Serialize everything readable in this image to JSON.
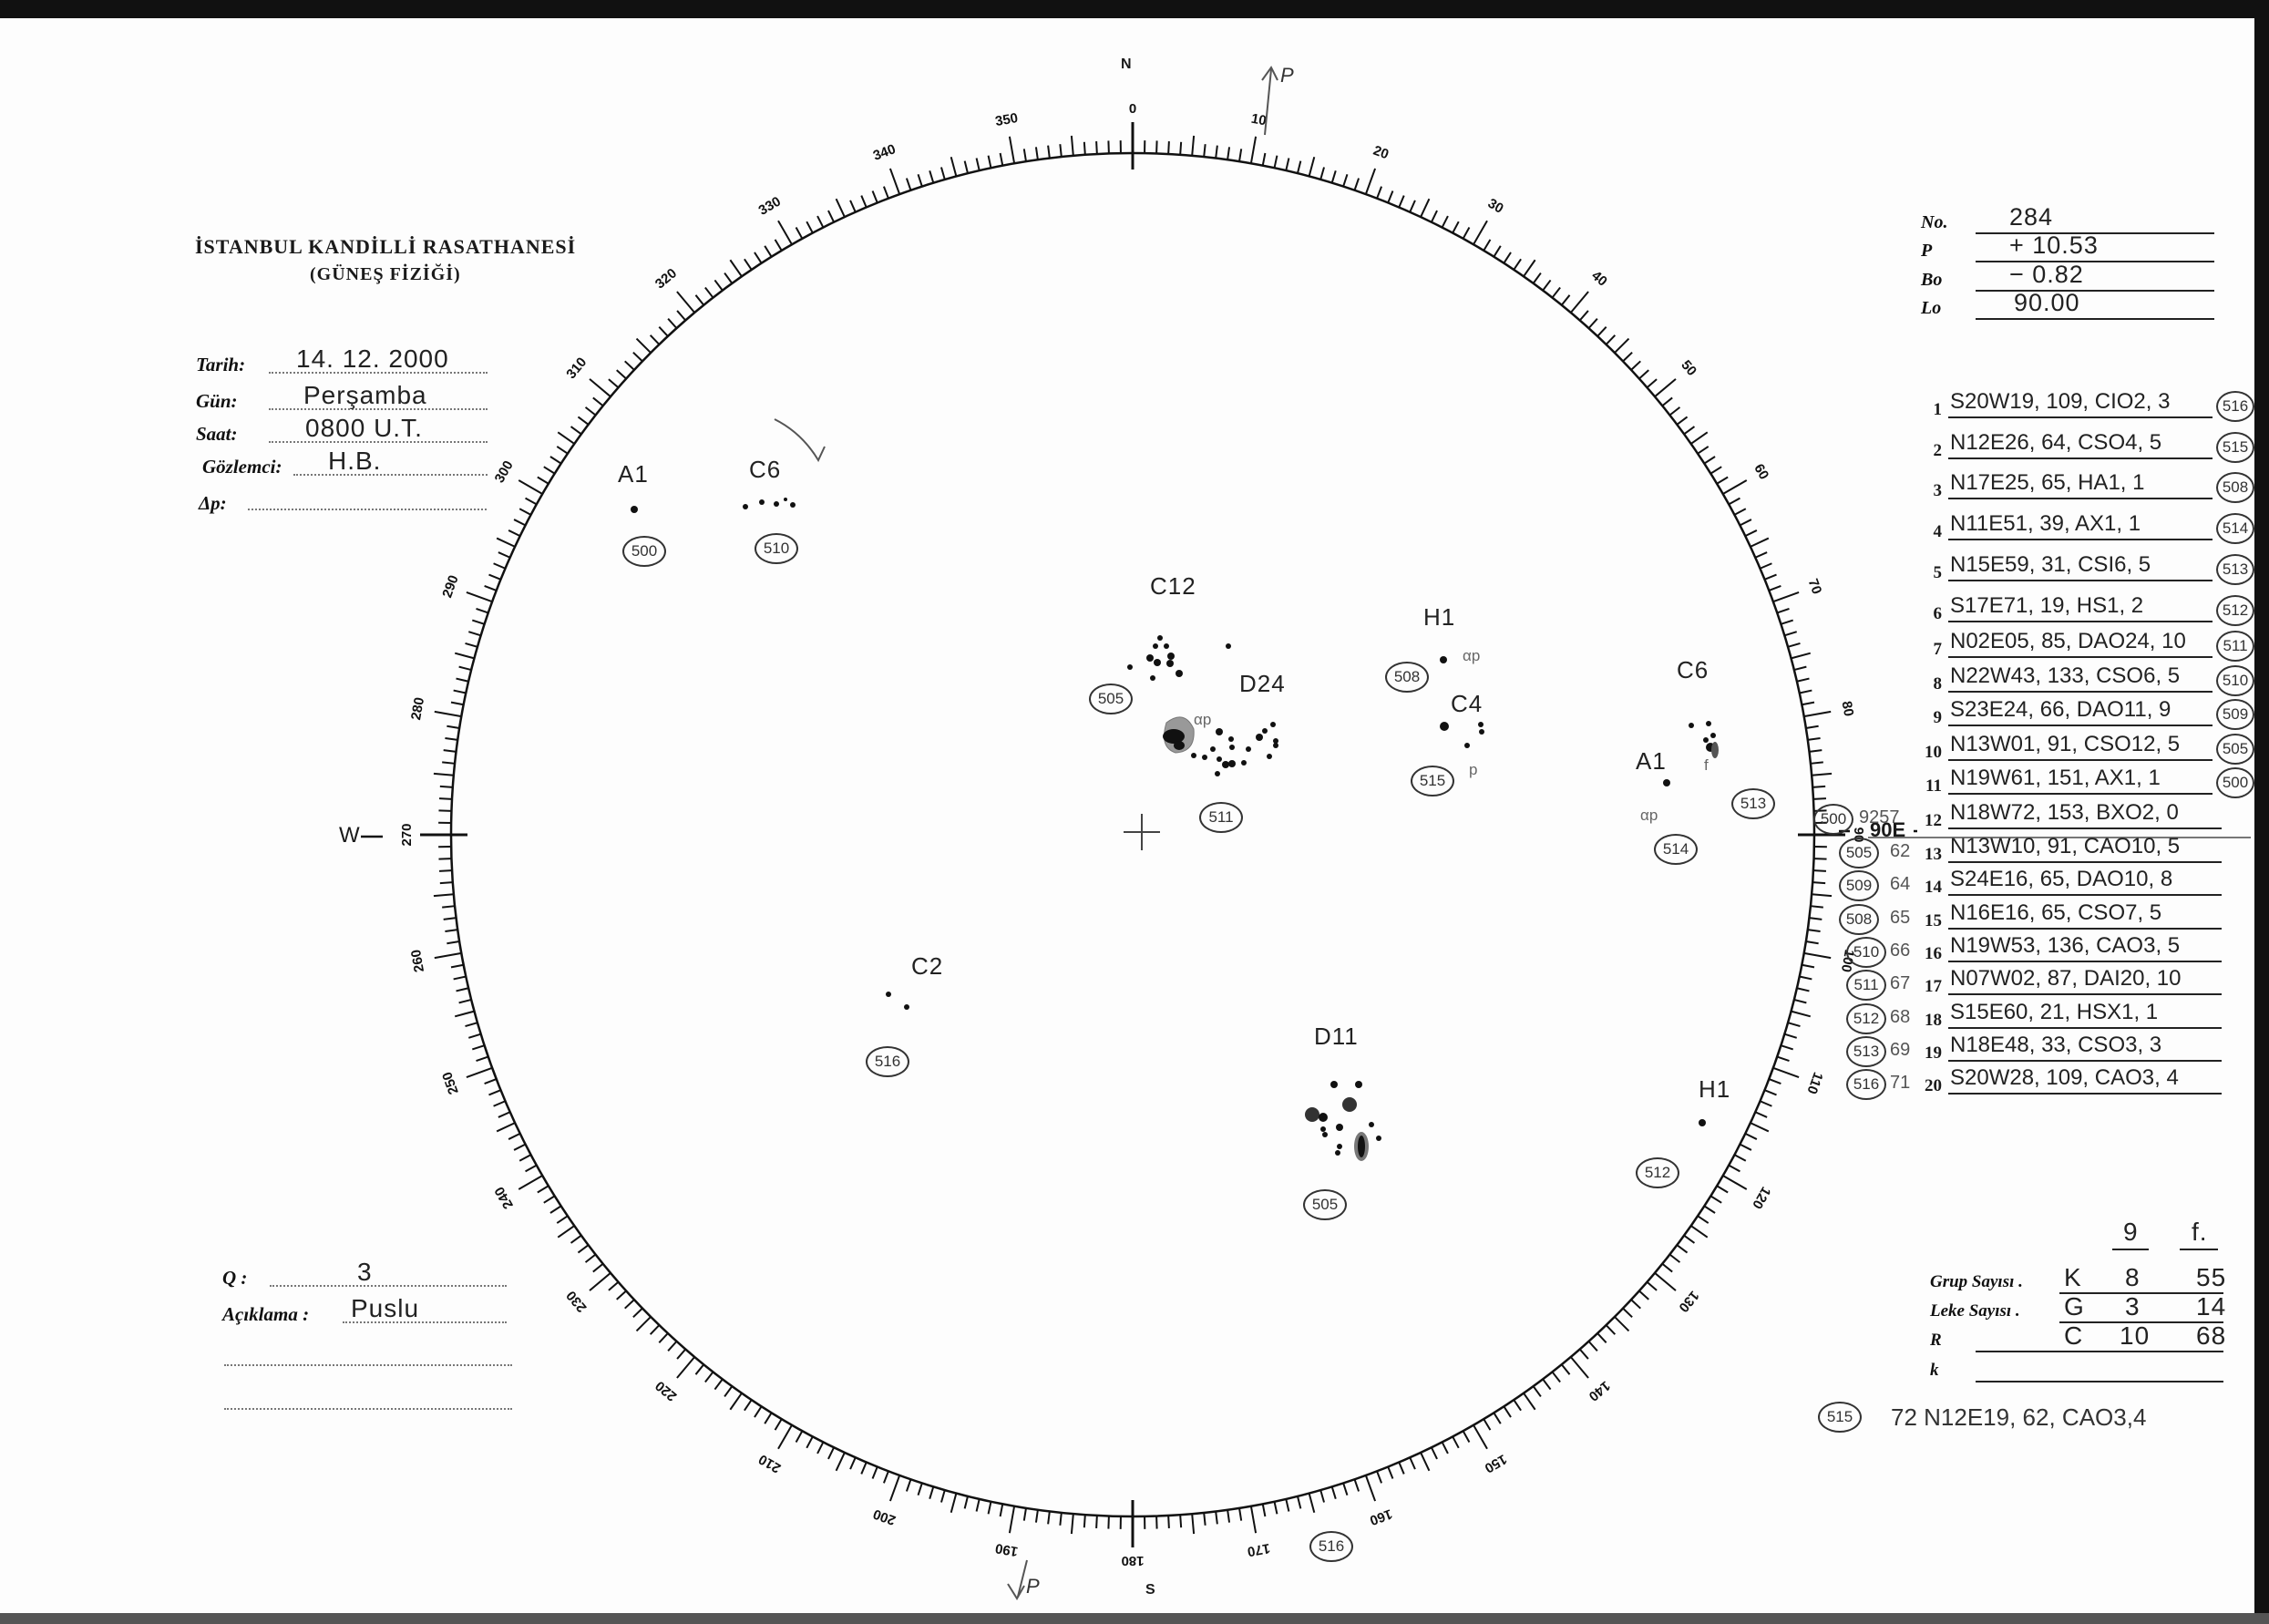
{
  "header": {
    "institution": "İSTANBUL KANDİLLİ RASATHANESİ",
    "department": "(GÜNEŞ FİZİĞİ)"
  },
  "form": {
    "date_label": "Tarih:",
    "date_value": "14. 12. 2000",
    "day_label": "Gün:",
    "day_value": "Perşamba",
    "time_label": "Saat:",
    "time_value": "0800 U.T.",
    "observer_label": "Gözlemci:",
    "observer_value": "H.B.",
    "dp_label": "Δp:",
    "dp_value": "",
    "q_label": "Q :",
    "q_value": "3",
    "remark_label": "Açıklama :",
    "remark_value": "Puslu"
  },
  "params": [
    {
      "label": "No.",
      "value": "284"
    },
    {
      "label": "P",
      "value": "+ 10.53"
    },
    {
      "label": "Bo",
      "value": "− 0.82"
    },
    {
      "label": "Lo",
      "value": "90.00"
    }
  ],
  "groups_table": [
    {
      "n": "1",
      "text": "S20W19, 109, CIO2, 3",
      "id": "516"
    },
    {
      "n": "2",
      "text": "N12E26, 64, CSO4, 5",
      "id": "515"
    },
    {
      "n": "3",
      "text": "N17E25, 65, HA1, 1",
      "id": "508"
    },
    {
      "n": "4",
      "text": "N11E51, 39, AX1, 1",
      "id": "514"
    },
    {
      "n": "5",
      "text": "N15E59, 31, CSI6, 5",
      "id": "513"
    },
    {
      "n": "6",
      "text": "S17E71, 19, HS1, 2",
      "id": "512"
    },
    {
      "n": "7",
      "text": "N02E05, 85, DAO24, 10",
      "id": "511"
    },
    {
      "n": "8",
      "text": "N22W43, 133, CSO6, 5",
      "id": "510"
    },
    {
      "n": "9",
      "text": "S23E24, 66, DAO11, 9",
      "id": "509"
    },
    {
      "n": "10",
      "text": "N13W01, 91, CSO12, 5",
      "id": "505"
    },
    {
      "n": "11",
      "text": "N19W61, 151, AX1, 1",
      "id": "500"
    },
    {
      "n": "12",
      "text": "N18W72, 153, BXO2, 0",
      "id": "500",
      "ref": "9257"
    },
    {
      "n": "13",
      "text": "N13W10, 91, CAO10, 5",
      "id": "505",
      "ref": "62"
    },
    {
      "n": "14",
      "text": "S24E16, 65, DAO10, 8",
      "id": "509",
      "ref": "64"
    },
    {
      "n": "15",
      "text": "N16E16, 65, CSO7, 5",
      "id": "508",
      "ref": "65"
    },
    {
      "n": "16",
      "text": "N19W53, 136, CAO3, 5",
      "id": "510",
      "ref": "66"
    },
    {
      "n": "17",
      "text": "N07W02, 87, DAI20, 10",
      "id": "511",
      "ref": "67"
    },
    {
      "n": "18",
      "text": "S15E60, 21, HSX1, 1",
      "id": "512",
      "ref": "68"
    },
    {
      "n": "19",
      "text": "N18E48, 33, CSO3, 3",
      "id": "513",
      "ref": "69"
    },
    {
      "n": "20",
      "text": "S20W28, 109, CAO3, 4",
      "id": "516",
      "ref": "71"
    }
  ],
  "east_marker": "90E",
  "west_marker": "W",
  "summary": {
    "col_g": "9",
    "col_f": "f.",
    "rows": [
      {
        "label": "Grup Sayısı .",
        "key": "K",
        "g": "8",
        "f": "55"
      },
      {
        "label": "Leke Sayısı .",
        "key": "G",
        "g": "3",
        "f": "14"
      },
      {
        "label": "R",
        "key": "C",
        "g": "10",
        "f": "68"
      },
      {
        "label": "k",
        "key": "",
        "g": "",
        "f": ""
      }
    ],
    "extra_id": "515",
    "extra_text": "72  N12E19, 62, CAO3,4"
  },
  "disk": {
    "scale_labels": [
      "0",
      "10",
      "20",
      "30",
      "40",
      "50",
      "60",
      "70",
      "80",
      "90",
      "100",
      "110",
      "120",
      "130",
      "140",
      "150",
      "160",
      "170",
      "180",
      "190",
      "200",
      "210",
      "220",
      "230",
      "240",
      "250",
      "260",
      "270",
      "280",
      "290",
      "300",
      "310",
      "320",
      "330",
      "340",
      "350"
    ],
    "north": "N",
    "south": "S",
    "pole_label": "P",
    "groups": [
      {
        "label": "A1",
        "id": "500"
      },
      {
        "label": "C6",
        "id": "510"
      },
      {
        "label": "C12",
        "id": "505",
        "note": "αp"
      },
      {
        "label": "D24",
        "id": "511"
      },
      {
        "label": "H1",
        "id": "508",
        "note": "αp"
      },
      {
        "label": "C4",
        "id": "515",
        "note": "p"
      },
      {
        "label": "C6",
        "id": "513",
        "note": "f"
      },
      {
        "label": "A1",
        "id": "514",
        "note": "αp"
      },
      {
        "label": "C2",
        "id": "516"
      },
      {
        "label": "D11",
        "id": "505"
      },
      {
        "label": "H1",
        "id": "512"
      },
      {
        "label": "",
        "id": "516"
      }
    ]
  }
}
